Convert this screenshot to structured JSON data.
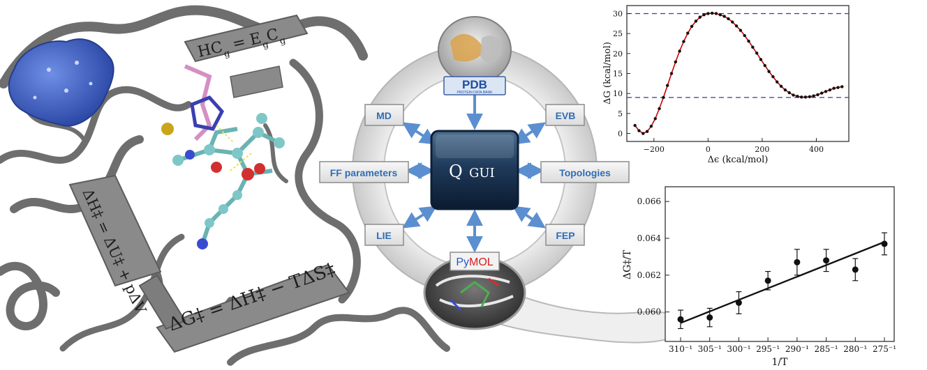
{
  "equations": {
    "hc": "HC",
    "hc_sub": "g",
    "hc_mid": " = E",
    "hc_sub2": "g",
    "hc_c": "C",
    "hc_sub3": "g",
    "dh": "ΔH‡ = ΔU‡ + pΔV",
    "dg": "ΔG‡ = ΔH‡ − TΔS‡"
  },
  "hub": {
    "center_q": "Q",
    "center_gui": "GUI",
    "pdb_label": "PDB",
    "pdb_sub": "PROTEIN DATA BANK",
    "pymol_py": "Py",
    "pymol_mol": "MOL",
    "boxes": {
      "md": "MD",
      "evb": "EVB",
      "ff": "FF parameters",
      "topologies": "Topologies",
      "lie": "LIE",
      "fep": "FEP"
    }
  },
  "colors": {
    "box_text": "#2f6db5",
    "box_fill": "#e9e9e9",
    "arrow": "#5b8fd0",
    "protein": "#7a7a7a",
    "blob": "#3f63c9",
    "curve": "#cc0000",
    "dashed": "#3b3b8f",
    "pymol_py": "#2a58c9",
    "pymol_mol": "#d42020"
  },
  "chart_data": [
    {
      "type": "line",
      "xlabel": "Δϵ (kcal/mol)",
      "ylabel": "ΔG (kcal/mol)",
      "xlim": [
        -300,
        520
      ],
      "ylim": [
        -2,
        32
      ],
      "xticks": [
        -200,
        0,
        200,
        400
      ],
      "yticks": [
        0,
        5,
        10,
        15,
        20,
        25,
        30
      ],
      "hlines": [
        30,
        9
      ],
      "x": [
        -270,
        -255,
        -240,
        -225,
        -210,
        -195,
        -180,
        -165,
        -150,
        -135,
        -120,
        -105,
        -90,
        -75,
        -60,
        -45,
        -30,
        -15,
        0,
        15,
        30,
        45,
        60,
        75,
        90,
        105,
        120,
        135,
        150,
        165,
        180,
        195,
        210,
        225,
        240,
        255,
        270,
        285,
        300,
        315,
        330,
        345,
        360,
        375,
        390,
        405,
        420,
        435,
        450,
        465,
        480,
        495
      ],
      "y": [
        2.0,
        0.7,
        0.0,
        0.5,
        1.8,
        3.7,
        6.2,
        9.0,
        12.0,
        15.0,
        17.9,
        20.6,
        23.0,
        25.1,
        26.8,
        28.1,
        29.1,
        29.7,
        30.0,
        30.1,
        30.0,
        29.7,
        29.3,
        28.7,
        27.9,
        26.9,
        25.8,
        24.5,
        23.1,
        21.6,
        20.1,
        18.5,
        17.0,
        15.5,
        14.2,
        12.9,
        11.8,
        10.9,
        10.2,
        9.6,
        9.3,
        9.1,
        9.1,
        9.2,
        9.4,
        9.7,
        10.1,
        10.5,
        10.9,
        11.3,
        11.5,
        11.7
      ],
      "grid": false
    },
    {
      "type": "scatter",
      "xlabel": "1/T",
      "ylabel": "ΔG‡/T",
      "categories": [
        "310⁻¹",
        "305⁻¹",
        "300⁻¹",
        "295⁻¹",
        "290⁻¹",
        "285⁻¹",
        "280⁻¹",
        "275⁻¹"
      ],
      "x": [
        310,
        305,
        300,
        295,
        290,
        285,
        280,
        275
      ],
      "values": [
        0.0596,
        0.0597,
        0.0605,
        0.0617,
        0.0627,
        0.0628,
        0.0623,
        0.0637
      ],
      "errors": [
        0.0005,
        0.0005,
        0.0006,
        0.0005,
        0.0007,
        0.0006,
        0.0006,
        0.0006
      ],
      "fit": [
        0.0594,
        0.0638
      ],
      "ylim": [
        0.0584,
        0.0668
      ],
      "yticks": [
        0.06,
        0.062,
        0.064,
        0.066
      ],
      "ytick_labels": [
        "0.060",
        "0.062",
        "0.064",
        "0.066"
      ],
      "grid": false
    }
  ]
}
